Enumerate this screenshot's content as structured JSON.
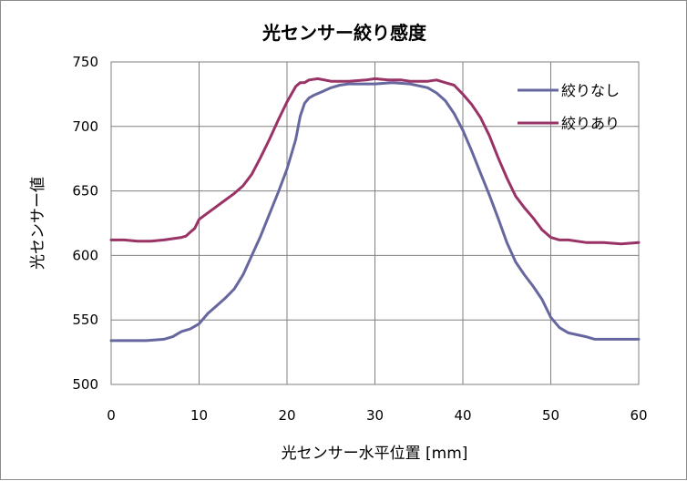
{
  "chart_data": {
    "type": "line",
    "title": "光センサー絞り感度",
    "xlabel": "光センサー水平位置 [mm]",
    "ylabel": "光センサー値",
    "xlim": [
      0,
      60
    ],
    "ylim": [
      500,
      750
    ],
    "xticks": [
      0,
      10,
      20,
      30,
      40,
      50,
      60
    ],
    "yticks": [
      500,
      550,
      600,
      650,
      700,
      750
    ],
    "grid": true,
    "legend_position": "top-right",
    "series": [
      {
        "name": "絞りなし",
        "color": "#6767a0",
        "points": [
          [
            0,
            534
          ],
          [
            2,
            534
          ],
          [
            4,
            534
          ],
          [
            6,
            535
          ],
          [
            7,
            537
          ],
          [
            8,
            541
          ],
          [
            9,
            543
          ],
          [
            10,
            547
          ],
          [
            11,
            555
          ],
          [
            12,
            561
          ],
          [
            13,
            567
          ],
          [
            14,
            574
          ],
          [
            15,
            585
          ],
          [
            16,
            600
          ],
          [
            17,
            615
          ],
          [
            18,
            632
          ],
          [
            19,
            649
          ],
          [
            20,
            667
          ],
          [
            21,
            690
          ],
          [
            21.5,
            708
          ],
          [
            22,
            718
          ],
          [
            22.5,
            722
          ],
          [
            23,
            724
          ],
          [
            24,
            727
          ],
          [
            25,
            730
          ],
          [
            26,
            732
          ],
          [
            27,
            733
          ],
          [
            28,
            733
          ],
          [
            30,
            733
          ],
          [
            32,
            734
          ],
          [
            34,
            733
          ],
          [
            36,
            730
          ],
          [
            37,
            726
          ],
          [
            38,
            720
          ],
          [
            39,
            710
          ],
          [
            40,
            697
          ],
          [
            41,
            681
          ],
          [
            42,
            664
          ],
          [
            43,
            647
          ],
          [
            44,
            629
          ],
          [
            45,
            610
          ],
          [
            46,
            595
          ],
          [
            47,
            585
          ],
          [
            48,
            576
          ],
          [
            49,
            566
          ],
          [
            50,
            552
          ],
          [
            51,
            544
          ],
          [
            52,
            540
          ],
          [
            54,
            537
          ],
          [
            55,
            535
          ],
          [
            57,
            535
          ],
          [
            60,
            535
          ]
        ]
      },
      {
        "name": "絞りあり",
        "color": "#993366",
        "points": [
          [
            0,
            612
          ],
          [
            1.5,
            612
          ],
          [
            3,
            611
          ],
          [
            4.5,
            611
          ],
          [
            6,
            612
          ],
          [
            7,
            613
          ],
          [
            8,
            614
          ],
          [
            8.5,
            615
          ],
          [
            9,
            618
          ],
          [
            9.5,
            621
          ],
          [
            10,
            628
          ],
          [
            11,
            633
          ],
          [
            12,
            638
          ],
          [
            13,
            643
          ],
          [
            14,
            648
          ],
          [
            15,
            654
          ],
          [
            16,
            663
          ],
          [
            17,
            676
          ],
          [
            18,
            690
          ],
          [
            19,
            705
          ],
          [
            20,
            719
          ],
          [
            21,
            731
          ],
          [
            21.5,
            734
          ],
          [
            22,
            734
          ],
          [
            22.5,
            736
          ],
          [
            23.5,
            737
          ],
          [
            25,
            735
          ],
          [
            27,
            735
          ],
          [
            29,
            736
          ],
          [
            30,
            737
          ],
          [
            31.5,
            736
          ],
          [
            33,
            736
          ],
          [
            34,
            735
          ],
          [
            35,
            735
          ],
          [
            36,
            735
          ],
          [
            37,
            736
          ],
          [
            38,
            734
          ],
          [
            39,
            732
          ],
          [
            40,
            725
          ],
          [
            41,
            717
          ],
          [
            42,
            707
          ],
          [
            43,
            693
          ],
          [
            44,
            676
          ],
          [
            45,
            660
          ],
          [
            46,
            646
          ],
          [
            47,
            637
          ],
          [
            48,
            629
          ],
          [
            49,
            620
          ],
          [
            50,
            614
          ],
          [
            51,
            612
          ],
          [
            52,
            612
          ],
          [
            53,
            611
          ],
          [
            54,
            610
          ],
          [
            56,
            610
          ],
          [
            58,
            609
          ],
          [
            60,
            610
          ]
        ]
      }
    ]
  }
}
